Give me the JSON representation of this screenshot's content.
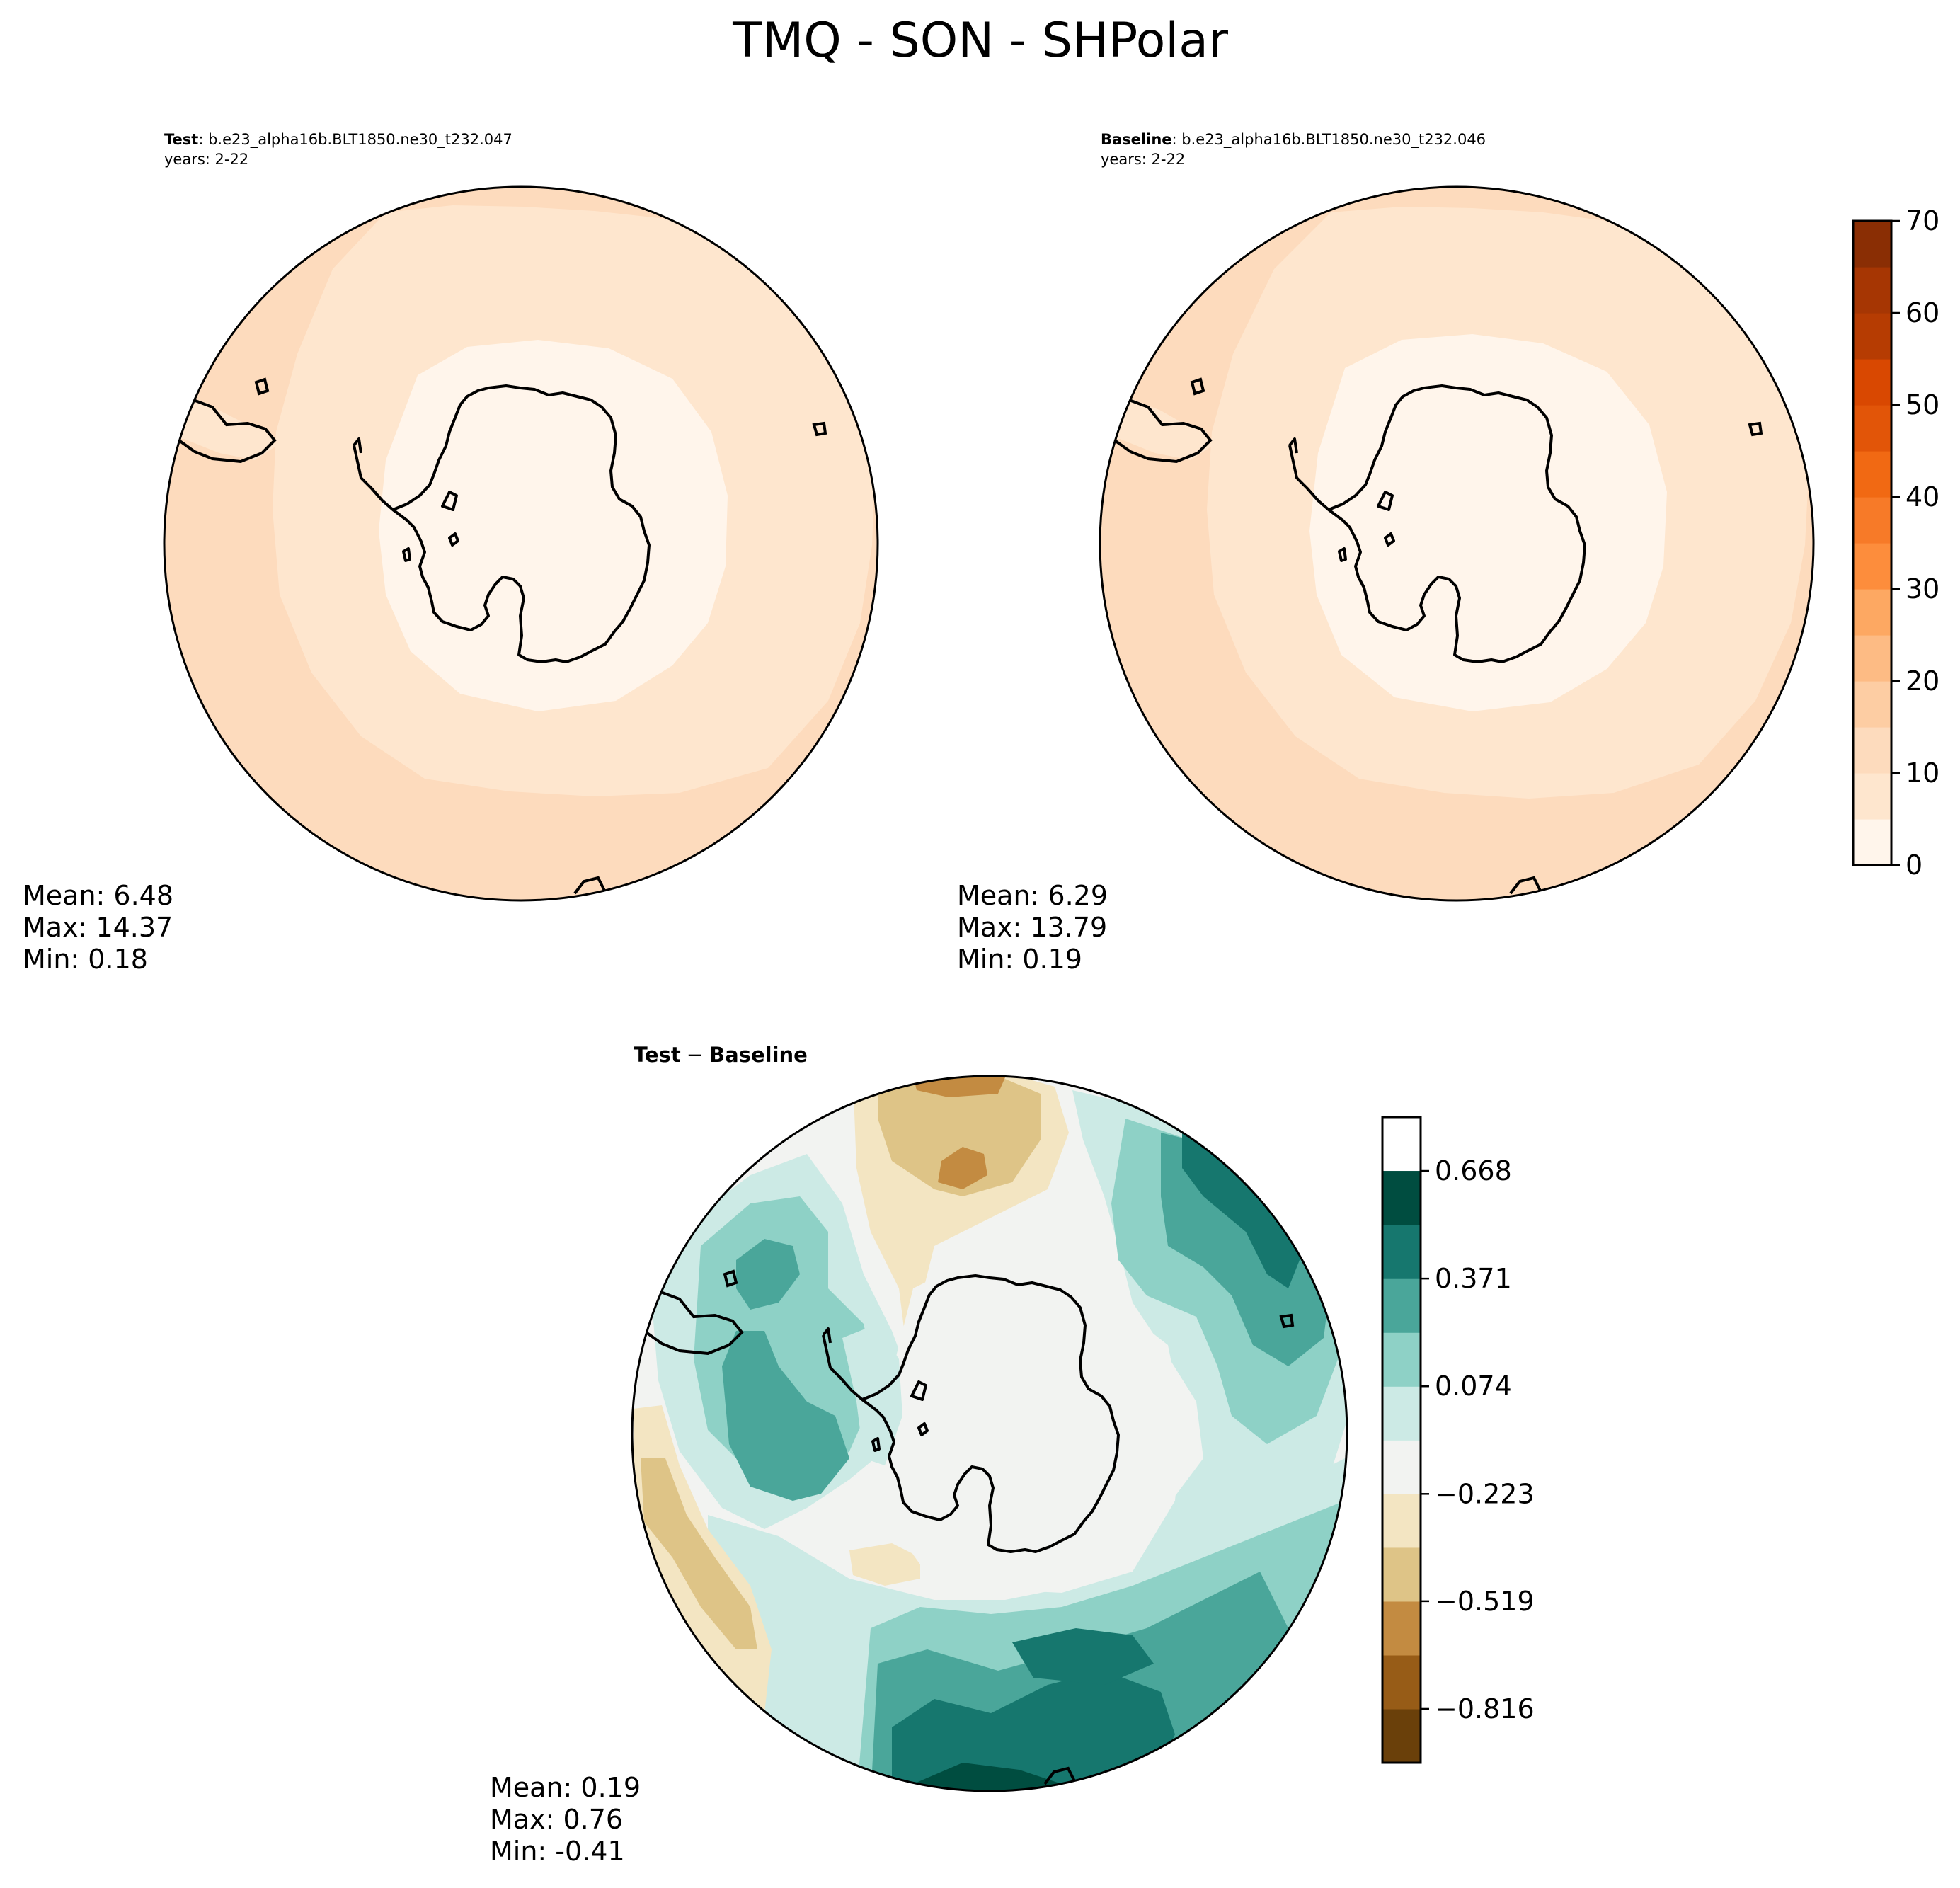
{
  "figure": {
    "title": "TMQ - SON - SHPolar"
  },
  "chart_data": [
    {
      "type": "heatmap",
      "panel": "test",
      "projection": "south polar stereographic",
      "label_bold": "Test",
      "label_text": ": b.e23_alpha16b.BLT1850.ne30_t232.047",
      "years": "years: 2-22",
      "stats": {
        "mean": "Mean:  6.48",
        "max": "Max: 14.37",
        "min": "Min:  0.18"
      },
      "field_bands": [
        {
          "range": [
            0,
            5
          ],
          "location": "Antarctic interior and coastal ring"
        },
        {
          "range": [
            5,
            10
          ],
          "location": "Southern Ocean belt"
        },
        {
          "range": [
            10,
            15
          ],
          "location": "outer mid-latitude ring"
        }
      ]
    },
    {
      "type": "heatmap",
      "panel": "baseline",
      "projection": "south polar stereographic",
      "label_bold": "Baseline",
      "label_text": ": b.e23_alpha16b.BLT1850.ne30_t232.046",
      "years": "years: 2-22",
      "stats": {
        "mean": "Mean:  6.29",
        "max": "Max: 13.79",
        "min": "Min:  0.19"
      },
      "field_bands": [
        {
          "range": [
            0,
            5
          ],
          "location": "Antarctic interior and coastal ring"
        },
        {
          "range": [
            5,
            10
          ],
          "location": "Southern Ocean belt"
        },
        {
          "range": [
            10,
            15
          ],
          "location": "outer mid-latitude ring"
        }
      ]
    },
    {
      "type": "heatmap",
      "panel": "difference",
      "projection": "south polar stereographic",
      "title_bold_a": "Test",
      "title_minus": "−",
      "title_bold_b": "Baseline",
      "stats": {
        "mean": "Mean:  0.19",
        "max": "Max:  0.76",
        "min": "Min: -0.41"
      }
    }
  ],
  "colorbar_main": {
    "min": 0,
    "max": 70,
    "bounds": [
      0,
      5,
      10,
      15,
      20,
      25,
      30,
      35,
      40,
      45,
      50,
      55,
      60,
      65,
      70
    ],
    "tick_values": [
      0,
      10,
      20,
      30,
      40,
      50,
      60,
      70
    ],
    "tick_labels": [
      "0",
      "10",
      "20",
      "30",
      "40",
      "50",
      "60",
      "70"
    ],
    "colors": [
      "#fff5eb",
      "#fee6ce",
      "#fddbbd",
      "#fdcda3",
      "#fdbb84",
      "#fda862",
      "#fd8d3c",
      "#f77a28",
      "#f16913",
      "#e25508",
      "#d94801",
      "#b63c02",
      "#a63603",
      "#8a2e04"
    ]
  },
  "colorbar_diff": {
    "bounds": [
      -0.9645,
      -0.816,
      -0.6675,
      -0.519,
      -0.3705,
      -0.223,
      -0.0745,
      0.074,
      0.2225,
      0.371,
      0.5195,
      0.668,
      0.8165
    ],
    "tick_values": [
      -0.816,
      -0.519,
      -0.223,
      0.074,
      0.371,
      0.668
    ],
    "tick_labels": [
      "−0.816",
      "−0.519",
      "−0.223",
      "0.074",
      "0.371",
      "0.668"
    ],
    "colors": [
      "#6a400a",
      "#975c17",
      "#c38b41",
      "#dec487",
      "#f3e5c2",
      "#f2f3f1",
      "#cceae5",
      "#8ed1c6",
      "#4aa69a",
      "#16776e",
      "#004d40"
    ]
  }
}
